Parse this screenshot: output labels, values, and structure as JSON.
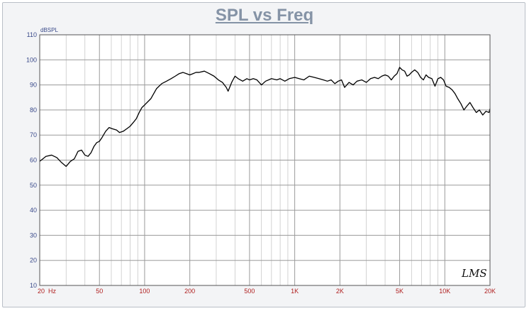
{
  "chart_data": {
    "type": "line",
    "title": "SPL vs Freq",
    "ylabel": "dBSPL",
    "xlabel": "",
    "x_scale": "log",
    "xlim": [
      20,
      20000
    ],
    "ylim": [
      10,
      110
    ],
    "grid": true,
    "y_ticks": [
      "20",
      "30",
      "40",
      "50",
      "60",
      "70",
      "80",
      "90",
      "100",
      "110"
    ],
    "y_ticks_numeric": [
      20,
      30,
      40,
      50,
      60,
      70,
      80,
      90,
      100,
      110
    ],
    "bottom_left_label": "10",
    "x_ticks": [
      {
        "label": "20  Hz",
        "value": 20
      },
      {
        "label": "50",
        "value": 50
      },
      {
        "label": "100",
        "value": 100
      },
      {
        "label": "200",
        "value": 200
      },
      {
        "label": "500",
        "value": 500
      },
      {
        "label": "1K",
        "value": 1000
      },
      {
        "label": "2K",
        "value": 2000
      },
      {
        "label": "5K",
        "value": 5000
      },
      {
        "label": "10K",
        "value": 10000
      },
      {
        "label": "20K",
        "value": 20000
      }
    ],
    "series": [
      {
        "color": "#000000",
        "x": [
          20,
          22,
          24,
          26,
          28,
          30,
          32,
          34,
          36,
          38,
          40,
          42,
          44,
          46,
          48,
          50,
          52,
          55,
          58,
          61,
          65,
          68,
          72,
          76,
          80,
          84,
          88,
          92,
          96,
          100,
          110,
          120,
          130,
          140,
          150,
          160,
          170,
          180,
          190,
          200,
          210,
          220,
          230,
          250,
          270,
          290,
          310,
          330,
          350,
          360,
          380,
          400,
          420,
          450,
          480,
          500,
          530,
          560,
          600,
          640,
          700,
          760,
          800,
          860,
          920,
          1000,
          1070,
          1150,
          1250,
          1350,
          1450,
          1550,
          1650,
          1750,
          1850,
          1950,
          2050,
          2150,
          2300,
          2450,
          2600,
          2800,
          3000,
          3200,
          3400,
          3600,
          3800,
          4000,
          4200,
          4400,
          4600,
          4800,
          5000,
          5200,
          5400,
          5600,
          5800,
          6000,
          6300,
          6600,
          6900,
          7200,
          7500,
          7800,
          8200,
          8600,
          9000,
          9400,
          9800,
          10200,
          10700,
          11200,
          11700,
          12200,
          12800,
          13400,
          14000,
          14700,
          15400,
          16200,
          17000,
          17900,
          18800,
          19700,
          20000
        ],
        "y": [
          59.5,
          61.5,
          62.0,
          61.0,
          59.0,
          57.5,
          59.5,
          60.5,
          63.5,
          64.0,
          62.0,
          61.5,
          63.0,
          65.5,
          67.0,
          67.5,
          69.0,
          71.5,
          73.0,
          72.5,
          72.0,
          71.0,
          71.5,
          72.5,
          73.5,
          75.0,
          76.5,
          79.0,
          81.0,
          82.0,
          84.5,
          88.5,
          90.5,
          91.5,
          92.5,
          93.5,
          94.5,
          95.0,
          94.5,
          94.0,
          94.5,
          95.0,
          95.0,
          95.5,
          94.5,
          93.5,
          92.0,
          91.0,
          89.0,
          87.5,
          91.0,
          93.5,
          92.5,
          91.5,
          92.5,
          92.0,
          92.5,
          92.0,
          90.0,
          91.5,
          92.5,
          92.0,
          92.5,
          91.5,
          92.5,
          93.0,
          92.5,
          92.0,
          93.5,
          93.0,
          92.5,
          92.0,
          91.5,
          92.0,
          90.5,
          91.5,
          92.0,
          89.0,
          91.0,
          90.0,
          91.5,
          92.0,
          91.0,
          92.5,
          93.0,
          92.5,
          93.5,
          94.0,
          93.5,
          92.0,
          93.5,
          94.5,
          97.0,
          96.0,
          95.5,
          93.5,
          94.0,
          95.0,
          96.0,
          95.0,
          93.0,
          92.0,
          94.0,
          93.0,
          92.5,
          89.5,
          92.5,
          93.0,
          92.0,
          89.5,
          89.0,
          88.0,
          86.5,
          84.5,
          82.5,
          80.0,
          81.5,
          83.0,
          81.0,
          79.0,
          80.0,
          78.0,
          79.5,
          79.0,
          80.5
        ]
      }
    ],
    "watermark": "LMS"
  }
}
